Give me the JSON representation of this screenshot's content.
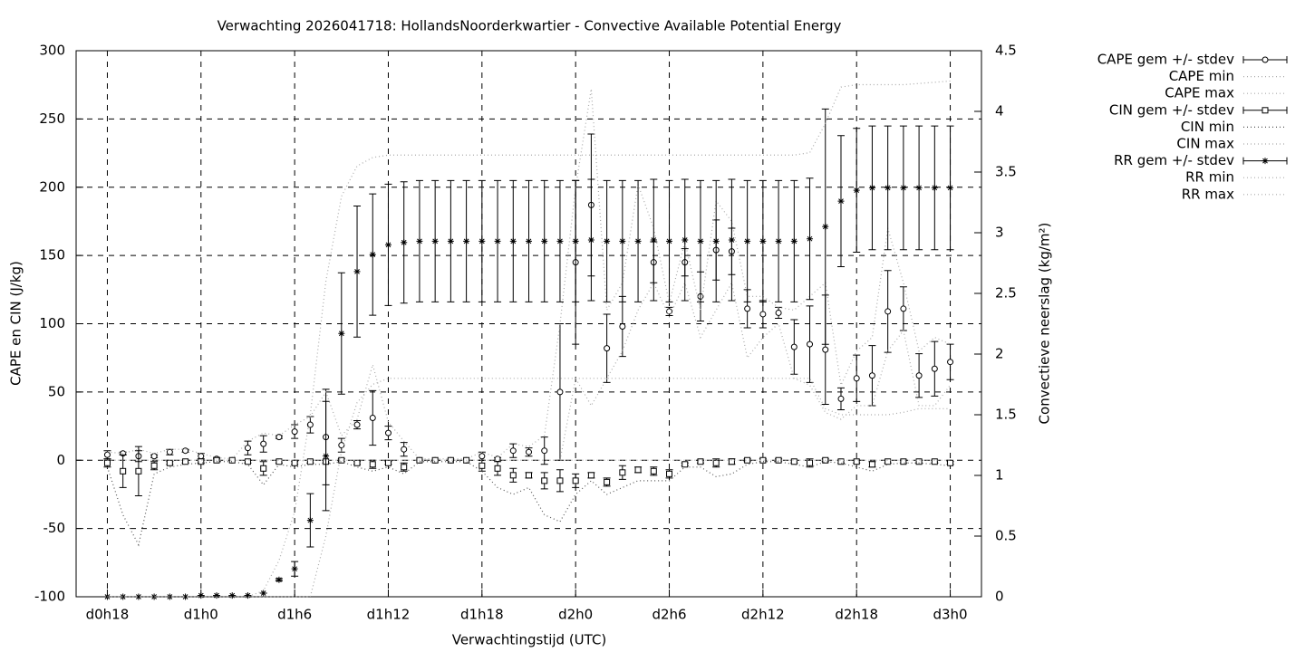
{
  "chart_data": {
    "type": "errorbar",
    "title": "Verwachting 2026041718: HollandsNoorderkwartier - Convective Available Potential Energy",
    "xlabel": "Verwachtingstijd (UTC)",
    "ylabel": "CAPE en CIN (J/kg)",
    "y2label": "Convectieve neerslag (kg/m²)",
    "x": [
      18,
      19,
      20,
      21,
      22,
      23,
      24,
      25,
      26,
      27,
      28,
      29,
      30,
      31,
      32,
      33,
      34,
      35,
      36,
      37,
      38,
      39,
      40,
      41,
      42,
      43,
      44,
      45,
      46,
      47,
      48,
      49,
      50,
      51,
      52,
      53,
      54,
      55,
      56,
      57,
      58,
      59,
      60,
      61,
      62,
      63,
      64,
      65,
      66,
      67,
      68,
      69,
      70,
      71,
      72
    ],
    "xlim": [
      16,
      74
    ],
    "xticks": [
      {
        "value": 18,
        "label": "d0h18"
      },
      {
        "value": 24,
        "label": "d1h0"
      },
      {
        "value": 30,
        "label": "d1h6"
      },
      {
        "value": 36,
        "label": "d1h12"
      },
      {
        "value": 42,
        "label": "d1h18"
      },
      {
        "value": 48,
        "label": "d2h0"
      },
      {
        "value": 54,
        "label": "d2h6"
      },
      {
        "value": 60,
        "label": "d2h12"
      },
      {
        "value": 66,
        "label": "d2h18"
      },
      {
        "value": 72,
        "label": "d3h0"
      }
    ],
    "ylim": [
      -100,
      300
    ],
    "yticks": [
      -100,
      -50,
      0,
      50,
      100,
      150,
      200,
      250,
      300
    ],
    "y2lim": [
      0,
      4.5
    ],
    "y2ticks": [
      0,
      0.5,
      1,
      1.5,
      2,
      2.5,
      3,
      3.5,
      4,
      4.5
    ],
    "grid": true,
    "series": [
      {
        "name": "CAPE gem +/- stdev",
        "style": "errorbar",
        "marker": "circle",
        "color": "#000000",
        "values": [
          4,
          5,
          3,
          3,
          6,
          7,
          3,
          1,
          0,
          9,
          12,
          17,
          21,
          26,
          17,
          11,
          26,
          31,
          20,
          8,
          0,
          0,
          0,
          0,
          3,
          1,
          7,
          6,
          7,
          50,
          145,
          187,
          82,
          98,
          null,
          145,
          109,
          145,
          120,
          154,
          153,
          111,
          107,
          108,
          83,
          85,
          81,
          45,
          60,
          62,
          109,
          111,
          62,
          67,
          72
        ],
        "errors": [
          3,
          1,
          4,
          1,
          2,
          1,
          2,
          1,
          0,
          5,
          6,
          1,
          5,
          6,
          35,
          5,
          3,
          20,
          5,
          5,
          0,
          0,
          0,
          0,
          3,
          1,
          5,
          3,
          10,
          50,
          60,
          52,
          25,
          22,
          null,
          15,
          3,
          10,
          18,
          22,
          17,
          14,
          10,
          4,
          20,
          28,
          40,
          8,
          17,
          22,
          30,
          16,
          16,
          20,
          13
        ]
      },
      {
        "name": "CAPE min",
        "style": "dotted",
        "color": "#aaaaaa",
        "values": [
          0,
          0,
          0,
          0,
          0,
          0,
          0,
          0,
          0,
          0,
          0,
          0,
          0,
          0,
          0,
          0,
          0,
          0,
          0,
          0,
          0,
          0,
          0,
          0,
          0,
          0,
          0,
          0,
          0,
          0,
          60,
          40,
          60,
          80,
          110,
          130,
          105,
          130,
          90,
          110,
          130,
          75,
          90,
          100,
          60,
          55,
          35,
          30,
          40,
          40,
          80,
          95,
          40,
          40,
          55
        ]
      },
      {
        "name": "CAPE max",
        "style": "dotted",
        "color": "#aaaaaa",
        "values": [
          6,
          5,
          8,
          5,
          8,
          8,
          5,
          2,
          1,
          14,
          20,
          18,
          26,
          32,
          50,
          18,
          30,
          70,
          28,
          14,
          1,
          1,
          1,
          1,
          6,
          2,
          12,
          10,
          18,
          100,
          200,
          272,
          110,
          130,
          202,
          170,
          115,
          160,
          110,
          190,
          175,
          120,
          120,
          112,
          110,
          120,
          130,
          55,
          80,
          90,
          170,
          130,
          80,
          90,
          85
        ]
      },
      {
        "name": "CIN gem +/- stdev",
        "style": "errorbar",
        "marker": "square",
        "color": "#000000",
        "values": [
          -2,
          -8,
          -8,
          -4,
          -2,
          -1,
          -1,
          0,
          0,
          -1,
          -6,
          -1,
          -2,
          -1,
          -1,
          0,
          -2,
          -3,
          -2,
          -5,
          0,
          0,
          0,
          0,
          -4,
          -6,
          -11,
          -11,
          -15,
          -15,
          -15,
          -11,
          -16,
          -9,
          -7,
          -8,
          -10,
          -3,
          -1,
          -2,
          -1,
          0,
          0,
          0,
          -1,
          -2,
          0,
          -1,
          -1,
          -3,
          -1,
          -1,
          -1,
          -1,
          -2
        ],
        "errors": [
          3,
          12,
          18,
          3,
          1,
          1,
          1,
          1,
          0,
          1,
          5,
          1,
          1,
          1,
          1,
          1,
          1,
          3,
          1,
          3,
          0,
          0,
          0,
          0,
          4,
          5,
          5,
          2,
          6,
          8,
          5,
          2,
          3,
          5,
          2,
          3,
          3,
          1,
          1,
          3,
          2,
          1,
          1,
          1,
          1,
          3,
          1,
          1,
          1,
          2,
          1,
          1,
          1,
          1,
          1
        ]
      },
      {
        "name": "CIN min",
        "style": "dotted",
        "color": "#555555",
        "values": [
          -5,
          -40,
          -62,
          -10,
          -5,
          -3,
          -2,
          -1,
          -1,
          -3,
          -18,
          -3,
          -5,
          -3,
          -3,
          -1,
          -5,
          -8,
          -5,
          -10,
          -1,
          -1,
          -1,
          -1,
          -8,
          -20,
          -25,
          -20,
          -40,
          -45,
          -25,
          -15,
          -25,
          -20,
          -15,
          -15,
          -15,
          -5,
          -5,
          -12,
          -10,
          -3,
          -1,
          -1,
          -3,
          -5,
          -1,
          -2,
          -5,
          -8,
          -3,
          -2,
          -2,
          -3,
          -4
        ]
      },
      {
        "name": "CIN max",
        "style": "dotted",
        "color": "#aaaaaa",
        "values": [
          0,
          0,
          0,
          0,
          0,
          0,
          0,
          0,
          0,
          0,
          0,
          0,
          0,
          0,
          0,
          0,
          0,
          0,
          0,
          0,
          0,
          0,
          0,
          0,
          0,
          0,
          0,
          0,
          0,
          0,
          0,
          0,
          0,
          0,
          0,
          0,
          0,
          0,
          0,
          0,
          0,
          0,
          0,
          0,
          0,
          0,
          0,
          0,
          0,
          0,
          0,
          0,
          0,
          0,
          0
        ]
      },
      {
        "name": "RR gem +/- stdev",
        "style": "errorbar",
        "marker": "star",
        "color": "#000000",
        "axis": "y2",
        "values": [
          0,
          0,
          0,
          0,
          0,
          0,
          0.01,
          0.01,
          0.01,
          0.01,
          0.03,
          0.14,
          0.23,
          0.63,
          1.16,
          2.17,
          2.68,
          2.82,
          2.9,
          2.92,
          2.93,
          2.93,
          2.93,
          2.93,
          2.93,
          2.93,
          2.93,
          2.93,
          2.93,
          2.93,
          2.93,
          2.94,
          2.93,
          2.93,
          2.93,
          2.94,
          2.93,
          2.94,
          2.93,
          2.93,
          2.94,
          2.93,
          2.93,
          2.93,
          2.93,
          2.95,
          3.05,
          3.26,
          3.35,
          3.37,
          3.37,
          3.37,
          3.37,
          3.37,
          3.37
        ],
        "errors": [
          0,
          0,
          0,
          0,
          0,
          0,
          0,
          0,
          0,
          0,
          0,
          0.01,
          0.06,
          0.22,
          0.45,
          0.5,
          0.54,
          0.5,
          0.5,
          0.5,
          0.5,
          0.5,
          0.5,
          0.5,
          0.5,
          0.5,
          0.5,
          0.5,
          0.5,
          0.5,
          0.5,
          0.5,
          0.5,
          0.5,
          0.5,
          0.5,
          0.5,
          0.5,
          0.5,
          0.5,
          0.5,
          0.5,
          0.5,
          0.5,
          0.5,
          0.5,
          0.97,
          0.54,
          0.51,
          0.51,
          0.51,
          0.51,
          0.51,
          0.51,
          0.51
        ]
      },
      {
        "name": "RR min",
        "style": "dotted",
        "color": "#aaaaaa",
        "axis": "y2",
        "values": [
          0,
          0,
          0,
          0,
          0,
          0,
          0,
          0,
          0,
          0,
          0,
          0,
          0,
          0,
          0.5,
          1.2,
          1.6,
          1.75,
          1.8,
          1.8,
          1.8,
          1.8,
          1.8,
          1.8,
          1.8,
          1.8,
          1.8,
          1.8,
          1.8,
          1.8,
          1.8,
          1.8,
          1.8,
          1.8,
          1.8,
          1.8,
          1.8,
          1.8,
          1.8,
          1.8,
          1.8,
          1.8,
          1.8,
          1.8,
          1.8,
          1.8,
          1.55,
          1.5,
          1.5,
          1.5,
          1.5,
          1.52,
          1.55,
          1.55,
          1.55
        ]
      },
      {
        "name": "RR max",
        "style": "dotted",
        "color": "#aaaaaa",
        "axis": "y2",
        "values": [
          0,
          0,
          0,
          0,
          0,
          0,
          0,
          0,
          0,
          0,
          0.05,
          0.3,
          0.7,
          1.5,
          2.6,
          3.3,
          3.55,
          3.62,
          3.64,
          3.64,
          3.64,
          3.64,
          3.64,
          3.64,
          3.64,
          3.64,
          3.64,
          3.64,
          3.64,
          3.64,
          3.64,
          3.64,
          3.64,
          3.64,
          3.64,
          3.64,
          3.64,
          3.64,
          3.64,
          3.64,
          3.64,
          3.64,
          3.64,
          3.64,
          3.64,
          3.66,
          3.9,
          4.2,
          4.22,
          4.22,
          4.22,
          4.22,
          4.23,
          4.24,
          4.25
        ]
      }
    ]
  }
}
